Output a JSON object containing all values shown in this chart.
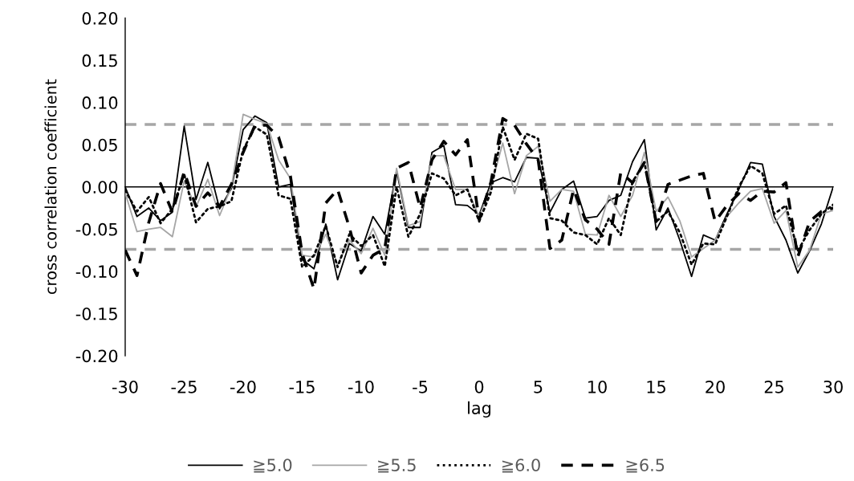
{
  "chart_data": {
    "type": "line",
    "xlabel": "lag",
    "ylabel": "cross correlation coefficient",
    "x": [
      -30,
      -29,
      -28,
      -27,
      -26,
      -25,
      -24,
      -23,
      -22,
      -21,
      -20,
      -19,
      -18,
      -17,
      -16,
      -15,
      -14,
      -13,
      -12,
      -11,
      -10,
      -9,
      -8,
      -7,
      -6,
      -5,
      -4,
      -3,
      -2,
      -1,
      0,
      1,
      2,
      3,
      4,
      5,
      6,
      7,
      8,
      9,
      10,
      11,
      12,
      13,
      14,
      15,
      16,
      17,
      18,
      19,
      20,
      21,
      22,
      23,
      24,
      25,
      26,
      27,
      28,
      29,
      30
    ],
    "series": [
      {
        "name": "≧5.0",
        "color": "#000000",
        "line_style": "solid",
        "values": [
          0.0,
          -0.035,
          -0.025,
          -0.04,
          -0.03,
          0.072,
          -0.015,
          0.029,
          -0.026,
          -0.002,
          0.068,
          0.084,
          0.076,
          0.0,
          0.003,
          -0.086,
          -0.097,
          -0.044,
          -0.11,
          -0.067,
          -0.076,
          -0.035,
          -0.056,
          0.019,
          -0.048,
          -0.048,
          0.041,
          0.049,
          -0.021,
          -0.022,
          -0.033,
          0.005,
          0.011,
          0.006,
          0.035,
          0.034,
          -0.03,
          -0.003,
          0.007,
          -0.037,
          -0.035,
          -0.016,
          -0.01,
          0.03,
          0.056,
          -0.051,
          -0.025,
          -0.063,
          -0.106,
          -0.057,
          -0.063,
          -0.032,
          -0.003,
          0.029,
          0.027,
          -0.035,
          -0.063,
          -0.102,
          -0.076,
          -0.044,
          0.0
        ]
      },
      {
        "name": "≧5.5",
        "color": "#a6a6a6",
        "line_style": "solid",
        "values": [
          -0.007,
          -0.053,
          -0.05,
          -0.048,
          -0.059,
          0.007,
          -0.024,
          0.009,
          -0.034,
          0.0,
          0.086,
          0.08,
          0.075,
          0.032,
          0.01,
          -0.081,
          -0.083,
          -0.056,
          -0.092,
          -0.063,
          -0.079,
          -0.049,
          -0.081,
          0.022,
          -0.046,
          -0.041,
          0.037,
          0.037,
          -0.003,
          -0.003,
          -0.035,
          0.0,
          0.052,
          -0.008,
          0.037,
          0.048,
          -0.017,
          -0.003,
          -0.005,
          -0.056,
          -0.057,
          -0.01,
          -0.035,
          -0.01,
          0.041,
          -0.029,
          -0.012,
          -0.04,
          -0.083,
          -0.073,
          -0.063,
          -0.035,
          -0.019,
          -0.005,
          -0.002,
          -0.043,
          -0.028,
          -0.095,
          -0.075,
          -0.032,
          -0.028
        ]
      },
      {
        "name": "≧6.0",
        "color": "#000000",
        "line_style": "dotted",
        "values": [
          -0.004,
          -0.029,
          -0.012,
          -0.043,
          -0.026,
          0.015,
          -0.042,
          -0.026,
          -0.023,
          -0.017,
          0.044,
          0.071,
          0.062,
          -0.01,
          -0.014,
          -0.095,
          -0.081,
          -0.046,
          -0.095,
          -0.056,
          -0.07,
          -0.057,
          -0.094,
          0.0,
          -0.059,
          -0.032,
          0.016,
          0.01,
          -0.01,
          -0.003,
          -0.041,
          -0.006,
          0.071,
          0.032,
          0.063,
          0.057,
          -0.037,
          -0.04,
          -0.054,
          -0.057,
          -0.068,
          -0.037,
          -0.057,
          0.006,
          0.029,
          -0.041,
          -0.029,
          -0.054,
          -0.092,
          -0.067,
          -0.068,
          -0.035,
          0.0,
          0.025,
          0.016,
          -0.032,
          -0.022,
          -0.076,
          -0.051,
          -0.032,
          -0.021
        ]
      },
      {
        "name": "≧6.5",
        "color": "#000000",
        "line_style": "dashed",
        "values": [
          -0.075,
          -0.105,
          -0.042,
          0.004,
          -0.03,
          0.018,
          -0.023,
          -0.007,
          -0.023,
          0.003,
          0.041,
          0.073,
          0.073,
          0.059,
          0.013,
          -0.079,
          -0.121,
          -0.019,
          -0.003,
          -0.048,
          -0.102,
          -0.081,
          -0.073,
          0.022,
          0.029,
          -0.025,
          0.032,
          0.054,
          0.038,
          0.056,
          -0.039,
          0.006,
          0.081,
          0.073,
          0.051,
          0.032,
          -0.073,
          -0.063,
          -0.003,
          -0.039,
          -0.05,
          -0.068,
          0.017,
          0.005,
          0.029,
          -0.041,
          0.003,
          0.008,
          0.013,
          0.016,
          -0.041,
          -0.022,
          -0.008,
          -0.016,
          -0.005,
          -0.006,
          0.005,
          -0.083,
          -0.041,
          -0.029,
          -0.025
        ]
      }
    ],
    "xlim": [
      -30,
      30
    ],
    "xticks": [
      -30,
      -25,
      -20,
      -15,
      -10,
      -5,
      0,
      5,
      10,
      15,
      20,
      25,
      30
    ],
    "ylim": [
      -0.2,
      0.2
    ],
    "yticks": [
      {
        "value": -0.2,
        "label": "-0.20"
      },
      {
        "value": -0.15,
        "label": "-0.15"
      },
      {
        "value": -0.1,
        "label": "-0.10"
      },
      {
        "value": -0.05,
        "label": "-0.05"
      },
      {
        "value": 0,
        "label": "0.00"
      },
      {
        "value": 0.05,
        "label": "0.05"
      },
      {
        "value": 0.1,
        "label": "0.10"
      },
      {
        "value": 0.15,
        "label": "0.15"
      },
      {
        "value": 0.2,
        "label": "0.20"
      }
    ],
    "ref_lines": [
      {
        "axis": "y",
        "value": 0.074,
        "color": "#a6a6a6",
        "line_style": "dashed"
      },
      {
        "axis": "y",
        "value": -0.074,
        "color": "#a6a6a6",
        "line_style": "dashed"
      }
    ],
    "legend": "bottom",
    "marker": "none"
  }
}
